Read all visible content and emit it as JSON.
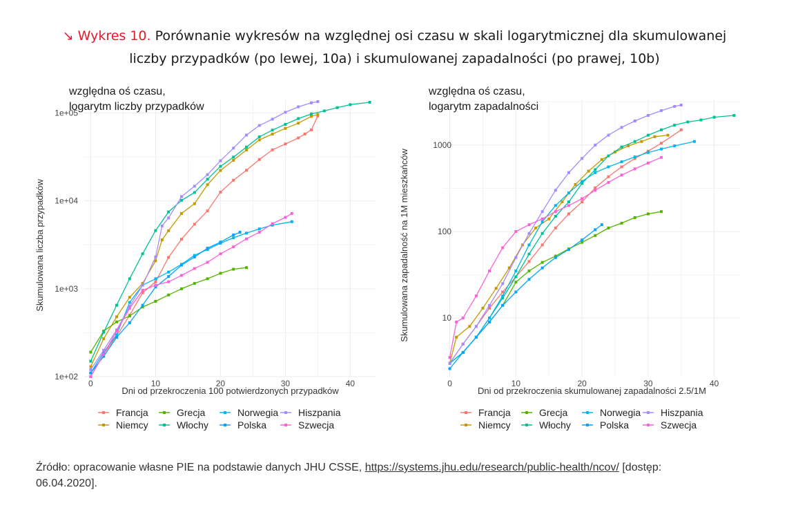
{
  "title": {
    "prefix": "↘ Wykres 10.",
    "line1": "Porównanie wykresów na względnej osi czasu w skali logarytmicznej dla skumulowanej",
    "line2": "liczby przypadków (po lewej, 10a) i skumulowanej zapadalności (po prawej, 10b)"
  },
  "source": {
    "text": "Źródło: opracowanie własne PIE na podstawie danych JHU CSSE,",
    "link": "https://systems.jhu.edu/research/public-health/ncov/",
    "suffix": "[dostęp:",
    "line2": "06.04.2020]."
  },
  "legend": [
    {
      "name": "Francja",
      "color": "#f8766d"
    },
    {
      "name": "Niemcy",
      "color": "#c49a00"
    },
    {
      "name": "Grecja",
      "color": "#53b400"
    },
    {
      "name": "Włochy",
      "color": "#00c094"
    },
    {
      "name": "Norwegia",
      "color": "#00b6eb"
    },
    {
      "name": "Polska",
      "color": "#06a4ff"
    },
    {
      "name": "Hiszpania",
      "color": "#a58aff"
    },
    {
      "name": "Szwecja",
      "color": "#fb61d7"
    }
  ],
  "chart_data": [
    {
      "type": "line",
      "subtitle1": "względna oś czasu,",
      "subtitle2": "logarytm liczby przypadków",
      "xlabel": "Dni od przekroczenia 100 potwierdzonych przypadków",
      "ylabel": "Skumulowana liczba przypadków",
      "xlim": [
        -1,
        44
      ],
      "ylim": [
        100,
        140000
      ],
      "y_scale": "log10",
      "x_ticks": [
        "0",
        "10",
        "20",
        "30",
        "40"
      ],
      "y_ticks": [
        "1e+02",
        "1e+03",
        "1e+04",
        "1e+05"
      ],
      "series": [
        {
          "name": "Francja",
          "x": [
            0,
            2,
            4,
            6,
            8,
            10,
            12,
            14,
            16,
            18,
            20,
            22,
            24,
            26,
            28,
            30,
            32,
            33,
            34,
            35
          ],
          "y": [
            100,
            180,
            290,
            500,
            900,
            1200,
            2280,
            3660,
            5420,
            7700,
            12600,
            17200,
            22300,
            29600,
            38100,
            44500,
            52100,
            57700,
            64300,
            92800
          ]
        },
        {
          "name": "Niemcy",
          "x": [
            0,
            2,
            4,
            6,
            8,
            10,
            11,
            12,
            14,
            16,
            18,
            20,
            22,
            24,
            26,
            28,
            30,
            32,
            34,
            35
          ],
          "y": [
            130,
            270,
            480,
            800,
            1150,
            2080,
            3600,
            4580,
            7200,
            9300,
            15300,
            22200,
            29000,
            38000,
            49400,
            57600,
            66900,
            76700,
            91700,
            96000
          ]
        },
        {
          "name": "Grecja",
          "x": [
            0,
            2,
            4,
            6,
            8,
            10,
            12,
            14,
            16,
            18,
            20,
            22,
            24
          ],
          "y": [
            190,
            330,
            420,
            490,
            620,
            720,
            850,
            1000,
            1150,
            1300,
            1500,
            1670,
            1740
          ]
        },
        {
          "name": "Włochy",
          "x": [
            0,
            2,
            4,
            6,
            8,
            10,
            12,
            14,
            16,
            18,
            20,
            22,
            24,
            26,
            28,
            30,
            32,
            34,
            36,
            38,
            40,
            43
          ],
          "y": [
            150,
            320,
            650,
            1300,
            2500,
            4600,
            7500,
            10150,
            12460,
            17660,
            24750,
            31500,
            41000,
            53600,
            63900,
            74400,
            86500,
            97700,
            105800,
            115200,
            124600,
            132500
          ]
        },
        {
          "name": "Norwegia",
          "x": [
            0,
            2,
            4,
            6,
            8,
            10,
            12,
            14,
            16,
            18,
            20,
            22,
            24,
            26,
            28,
            31
          ],
          "y": [
            110,
            190,
            300,
            700,
            1100,
            1300,
            1550,
            1900,
            2400,
            2800,
            3300,
            3800,
            4300,
            4800,
            5300,
            5800
          ]
        },
        {
          "name": "Polska",
          "x": [
            0,
            2,
            4,
            6,
            8,
            10,
            12,
            14,
            16,
            18,
            20,
            22,
            23
          ],
          "y": [
            110,
            170,
            280,
            410,
            650,
            1050,
            1380,
            1860,
            2300,
            2900,
            3400,
            4100,
            4400
          ]
        },
        {
          "name": "Hiszpania",
          "x": [
            0,
            2,
            4,
            6,
            8,
            10,
            11,
            12,
            14,
            16,
            18,
            20,
            22,
            24,
            26,
            28,
            30,
            32,
            34,
            35
          ],
          "y": [
            120,
            200,
            340,
            630,
            1100,
            2300,
            5200,
            6400,
            11200,
            14700,
            19900,
            28600,
            39900,
            56200,
            72200,
            85200,
            102100,
            117700,
            130700,
            135000
          ]
        },
        {
          "name": "Szwecja",
          "x": [
            0,
            2,
            4,
            6,
            8,
            10,
            12,
            14,
            16,
            18,
            20,
            22,
            24,
            26,
            28,
            30,
            31
          ],
          "y": [
            100,
            180,
            330,
            600,
            960,
            1100,
            1200,
            1420,
            1700,
            2000,
            2500,
            3000,
            3700,
            4400,
            5500,
            6500,
            7200
          ]
        }
      ]
    },
    {
      "type": "line",
      "subtitle1": "względna oś czasu,",
      "subtitle2": "logarytm zapadalności",
      "xlabel": "Dni od przekroczenia skumulowanej zapadalności 2.5/1M",
      "ylabel": "Skumulowana zapadalność na 1M mieszkańców",
      "xlim": [
        -1,
        44
      ],
      "ylim": [
        2.1,
        3300
      ],
      "y_scale": "log10",
      "x_ticks": [
        "0",
        "10",
        "20",
        "30",
        "40"
      ],
      "y_ticks": [
        "10",
        "100",
        "1000"
      ],
      "series": [
        {
          "name": "Francja",
          "x": [
            0,
            2,
            4,
            6,
            8,
            10,
            12,
            14,
            16,
            18,
            20,
            22,
            24,
            26,
            28,
            30,
            32,
            35
          ],
          "y": [
            3,
            5,
            8,
            13,
            20,
            30,
            45,
            70,
            110,
            160,
            220,
            320,
            430,
            560,
            700,
            850,
            1050,
            1500
          ]
        },
        {
          "name": "Niemcy",
          "x": [
            0,
            1,
            3,
            5,
            7,
            9,
            11,
            13,
            15,
            17,
            19,
            21,
            23,
            25,
            27,
            29,
            31,
            33
          ],
          "y": [
            3,
            6,
            8,
            13,
            22,
            38,
            70,
            110,
            140,
            220,
            350,
            500,
            680,
            830,
            980,
            1100,
            1250,
            1300
          ]
        },
        {
          "name": "Grecja",
          "x": [
            0,
            2,
            4,
            6,
            8,
            10,
            12,
            14,
            16,
            18,
            20,
            22,
            24,
            26,
            28,
            30,
            32
          ],
          "y": [
            3,
            4,
            6,
            9,
            14,
            26,
            35,
            44,
            52,
            63,
            75,
            90,
            110,
            125,
            145,
            160,
            170
          ]
        },
        {
          "name": "Włochy",
          "x": [
            0,
            2,
            4,
            6,
            8,
            10,
            12,
            14,
            16,
            18,
            20,
            22,
            24,
            26,
            28,
            30,
            32,
            34,
            36,
            38,
            40,
            43
          ],
          "y": [
            3,
            4,
            6,
            10,
            17,
            30,
            55,
            95,
            150,
            220,
            360,
            520,
            750,
            950,
            1100,
            1300,
            1500,
            1700,
            1850,
            1950,
            2100,
            2200
          ]
        },
        {
          "name": "Norwegia",
          "x": [
            0,
            2,
            4,
            6,
            8,
            10,
            12,
            14,
            16,
            18,
            20,
            22,
            24,
            26,
            28,
            30,
            32,
            34,
            37
          ],
          "y": [
            3,
            4,
            6,
            10,
            18,
            35,
            70,
            130,
            200,
            280,
            380,
            480,
            560,
            640,
            730,
            820,
            900,
            980,
            1100
          ]
        },
        {
          "name": "Polska",
          "x": [
            0,
            2,
            4,
            6,
            8,
            10,
            12,
            14,
            16,
            18,
            20,
            22,
            23
          ],
          "y": [
            2.6,
            4,
            6,
            9,
            14,
            20,
            28,
            38,
            50,
            62,
            80,
            105,
            120
          ]
        },
        {
          "name": "Hiszpania",
          "x": [
            0,
            2,
            4,
            6,
            8,
            10,
            12,
            14,
            16,
            18,
            20,
            22,
            24,
            26,
            28,
            30,
            32,
            34,
            35
          ],
          "y": [
            3,
            5,
            8,
            14,
            25,
            50,
            95,
            170,
            300,
            480,
            700,
            1000,
            1300,
            1600,
            1900,
            2200,
            2500,
            2800,
            2900
          ]
        },
        {
          "name": "Szwecja",
          "x": [
            0,
            1,
            2,
            4,
            6,
            8,
            10,
            12,
            14,
            16,
            18,
            20,
            22,
            24,
            26,
            28,
            30,
            32
          ],
          "y": [
            3.5,
            9,
            10,
            18,
            35,
            65,
            100,
            120,
            140,
            170,
            200,
            240,
            300,
            370,
            450,
            530,
            620,
            720
          ]
        }
      ]
    }
  ]
}
